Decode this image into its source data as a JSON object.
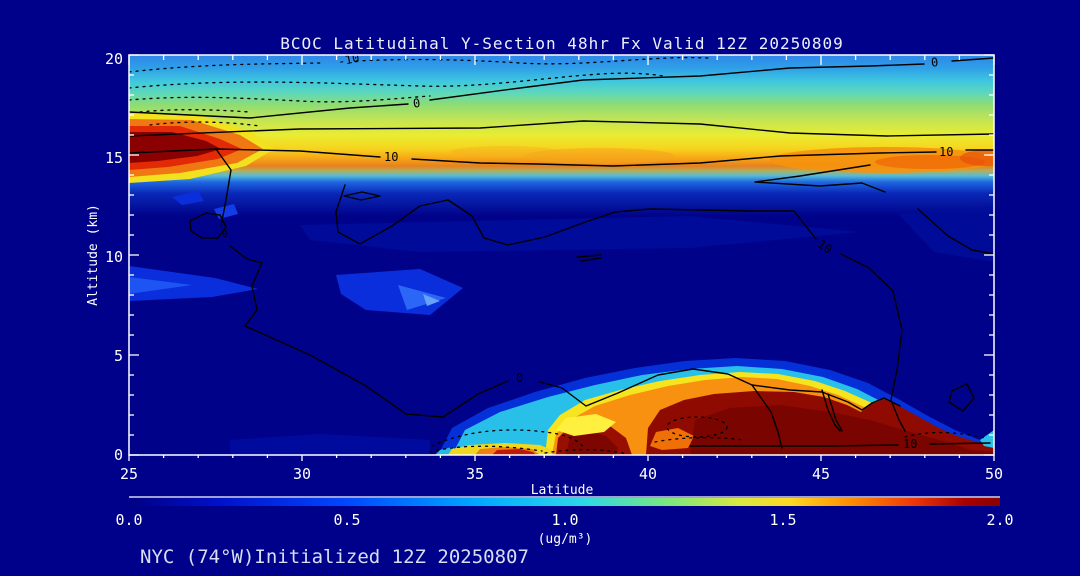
{
  "title": "BCOC Latitudinal Y-Section 48hr  Fx Valid 12Z 20250809",
  "footer": "NYC (74°W)Initialized 12Z 20250807",
  "colors": {
    "background": "#00018B",
    "plot_base": "#000389",
    "frame": "#FFFFFF",
    "axis_text": "#FFFFFF",
    "title_text": "#ECF0FA",
    "footer_text": "#D9DEF2",
    "contour_line": "#000000",
    "max_fill": "#8B0000"
  },
  "axes": {
    "x": {
      "label": "Latitude",
      "min": 25,
      "max": 50,
      "major_step": 5,
      "minor_step": 1,
      "ticks": [
        "25",
        "30",
        "35",
        "40",
        "45",
        "50"
      ]
    },
    "y": {
      "label": "Altitude (km)",
      "min": 0,
      "max": 20,
      "major_step": 5,
      "minor_step": 1,
      "ticks": [
        "0",
        "5",
        "10",
        "15",
        "20"
      ]
    }
  },
  "colorbar": {
    "min": 0.0,
    "max": 2.0,
    "ticks": [
      "0.0",
      "0.5",
      "1.0",
      "1.5",
      "2.0"
    ],
    "units": "(ug/m³)",
    "palette": [
      "#000084",
      "#0010C8",
      "#0048FF",
      "#00A8FF",
      "#2CD8E8",
      "#7CE87C",
      "#D8E840",
      "#FFD820",
      "#FF8C00",
      "#F03808",
      "#A80000",
      "#8B0000"
    ]
  },
  "contour_labels": {
    "minus_ten": "-10",
    "zero": "0",
    "ten": "10"
  },
  "chart_data": {
    "type": "heatmap",
    "subtype": "filled-contour cross-section with overlaid line contours",
    "title": "BCOC Latitudinal Y-Section 48hr  Fx Valid 12Z 20250809",
    "xlabel": "Latitude",
    "ylabel": "Altitude (km)",
    "xlim": [
      25,
      50
    ],
    "ylim": [
      0,
      20
    ],
    "fill_variable": "BCOC concentration",
    "fill_units": "ug/m3",
    "fill_range": [
      0.0,
      2.0
    ],
    "line_contour_levels_labeled": [
      -10,
      0,
      10
    ],
    "line_contour_styles": {
      "negative": "dotted",
      "zero_positive": "solid"
    },
    "grid": false,
    "legend": "horizontal colorbar 0.0-2.0 ug/m3, jet palette (dark blue to dark red)",
    "features": [
      {
        "name": "stratospheric plume layer",
        "lat": [
          25,
          50
        ],
        "altitude_km": [
          14,
          20
        ],
        "description": "horizontally layered band: blue 19-20 km, cyan 17.5-19 km, green 16.5-17.5 km, yellow 15.5-16.5 km, orange 14.5-15.5 km (strongest lat 42-50), sharp drop to dark blue below 14 km"
      },
      {
        "name": "stratospheric maximum",
        "lat": [
          25,
          29
        ],
        "altitude_km": [
          14.8,
          16.3
        ],
        "value_ugm3": 2.0,
        "description": "dark-red saturated core at left edge near 15-16 km"
      },
      {
        "name": "boundary-layer plume",
        "lat": [
          37.5,
          50
        ],
        "altitude_km": [
          0,
          2.8
        ],
        "value_ugm3": 2.0,
        "description": "dark-red surface maximum with yellow-orange fringe and cyan-blue halo reaching ~4 km; dotted negative contours embedded near lat 40-42"
      },
      {
        "name": "secondary surface plume",
        "lat": [
          35.3,
          37.3
        ],
        "altitude_km": [
          0,
          1
        ],
        "value_ugm3": 2.0,
        "description": "small dark-red surface spot with yellow ring near lat 36"
      },
      {
        "name": "surface onset streak",
        "lat": [
          34,
          35.5
        ],
        "altitude_km": [
          0,
          0.4
        ],
        "value_ugm3": 1.2,
        "description": "thin yellow-orange streak at surface west of main plume"
      },
      {
        "name": "mid-troposphere background",
        "lat": [
          25,
          50
        ],
        "altitude_km": [
          3,
          13
        ],
        "value_ugm3": 0.15,
        "description": "dark navy background with brighter blue patches near lat 25-27.5 and 31-34.5 at 7.5-9.5 km"
      }
    ]
  }
}
